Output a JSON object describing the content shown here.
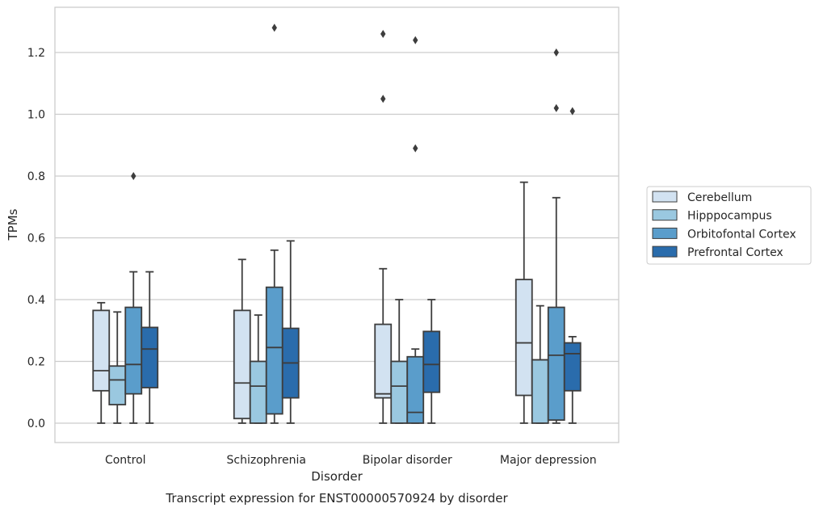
{
  "chart_data": {
    "type": "box",
    "title": "Transcript expression for ENST00000570924 by disorder",
    "xlabel": "Disorder",
    "ylabel": "TPMs",
    "ylim": [
      -0.06,
      1.35
    ],
    "yticks": [
      "0.0",
      "0.2",
      "0.4",
      "0.6",
      "0.8",
      "1.0",
      "1.2"
    ],
    "grid": "horizontal",
    "legend_position": "right",
    "categories": [
      "Control",
      "Schizophrenia",
      "Bipolar disorder",
      "Major depression"
    ],
    "series": [
      {
        "name": "Cerebellum",
        "color": "#d2e2f1",
        "boxes": [
          {
            "whislo": 0.0,
            "q1": 0.105,
            "med": 0.17,
            "q3": 0.365,
            "whishi": 0.39,
            "fliers": []
          },
          {
            "whislo": 0.0,
            "q1": 0.015,
            "med": 0.13,
            "q3": 0.365,
            "whishi": 0.53,
            "fliers": []
          },
          {
            "whislo": 0.0,
            "q1": 0.082,
            "med": 0.095,
            "q3": 0.32,
            "whishi": 0.5,
            "fliers": [
              1.05,
              1.26
            ]
          },
          {
            "whislo": 0.0,
            "q1": 0.09,
            "med": 0.26,
            "q3": 0.465,
            "whishi": 0.78,
            "fliers": []
          }
        ]
      },
      {
        "name": "Hipppocampus",
        "color": "#9ac8e0",
        "boxes": [
          {
            "whislo": 0.0,
            "q1": 0.06,
            "med": 0.14,
            "q3": 0.185,
            "whishi": 0.36,
            "fliers": []
          },
          {
            "whislo": 0.0,
            "q1": 0.0,
            "med": 0.12,
            "q3": 0.2,
            "whishi": 0.35,
            "fliers": []
          },
          {
            "whislo": 0.0,
            "q1": 0.0,
            "med": 0.12,
            "q3": 0.2,
            "whishi": 0.4,
            "fliers": []
          },
          {
            "whislo": 0.0,
            "q1": 0.0,
            "med": 0.205,
            "q3": 0.205,
            "whishi": 0.38,
            "fliers": []
          }
        ]
      },
      {
        "name": "Orbitofontal Cortex",
        "color": "#5a9dcb",
        "boxes": [
          {
            "whislo": 0.0,
            "q1": 0.095,
            "med": 0.19,
            "q3": 0.375,
            "whishi": 0.49,
            "fliers": [
              0.8
            ]
          },
          {
            "whislo": 0.0,
            "q1": 0.03,
            "med": 0.245,
            "q3": 0.44,
            "whishi": 0.56,
            "fliers": [
              1.28
            ]
          },
          {
            "whislo": 0.0,
            "q1": 0.0,
            "med": 0.035,
            "q3": 0.215,
            "whishi": 0.24,
            "fliers": [
              0.89,
              1.24
            ]
          },
          {
            "whislo": 0.0,
            "q1": 0.01,
            "med": 0.22,
            "q3": 0.375,
            "whishi": 0.73,
            "fliers": [
              1.02,
              1.2
            ]
          }
        ]
      },
      {
        "name": "Prefrontal Cortex",
        "color": "#2a6cac",
        "boxes": [
          {
            "whislo": 0.0,
            "q1": 0.115,
            "med": 0.24,
            "q3": 0.31,
            "whishi": 0.49,
            "fliers": []
          },
          {
            "whislo": 0.0,
            "q1": 0.082,
            "med": 0.195,
            "q3": 0.307,
            "whishi": 0.59,
            "fliers": []
          },
          {
            "whislo": 0.0,
            "q1": 0.1,
            "med": 0.19,
            "q3": 0.297,
            "whishi": 0.4,
            "fliers": []
          },
          {
            "whislo": 0.0,
            "q1": 0.105,
            "med": 0.225,
            "q3": 0.26,
            "whishi": 0.28,
            "fliers": [
              1.01
            ]
          }
        ]
      }
    ]
  }
}
